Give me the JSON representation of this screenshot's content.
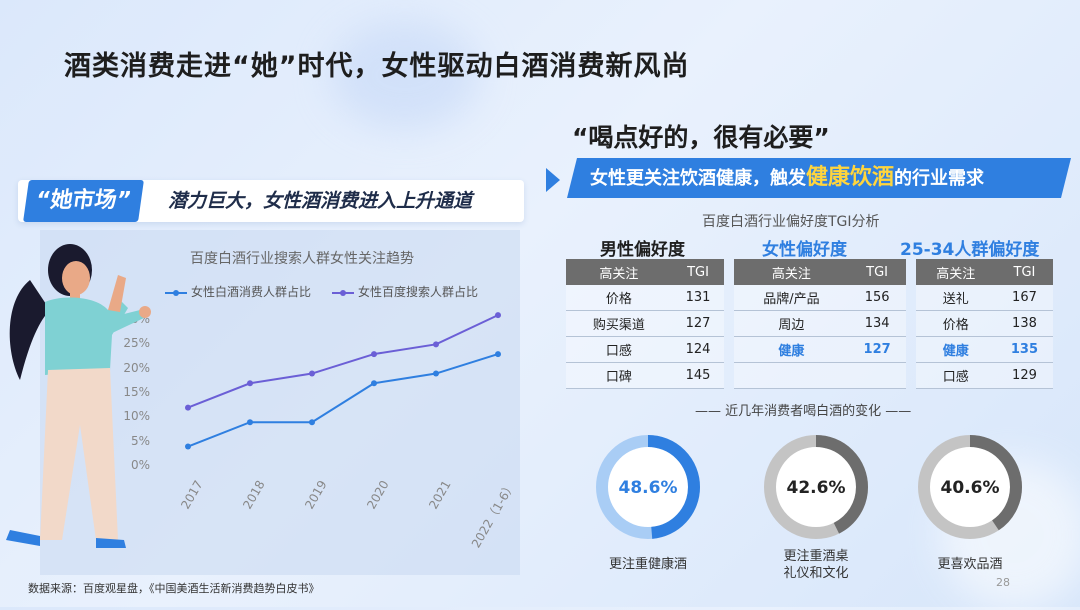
{
  "title": "酒类消费走进“她”时代，女性驱动白酒消费新风尚",
  "left_tag": {
    "highlight": "“她市场”",
    "text": "潜力巨大，女性酒消费进入上升通道"
  },
  "right_quote": "“喝点好的，很有必要”",
  "banner": {
    "prefix": "女性更关注饮酒健康，触发",
    "emphasis": "健康饮酒",
    "suffix": "的行业需求"
  },
  "tgi_title": "百度白酒行业偏好度TGI分析",
  "tgi_groups": [
    "男性偏好度",
    "女性偏好度",
    "25-34人群偏好度"
  ],
  "tgi_header": {
    "col1": "高关注",
    "col2": "TGI"
  },
  "tgi_rows": [
    [
      [
        "价格",
        "131"
      ],
      [
        "品牌/产品",
        "156"
      ],
      [
        "送礼",
        "167"
      ]
    ],
    [
      [
        "购买渠道",
        "127"
      ],
      [
        "周边",
        "134"
      ],
      [
        "价格",
        "138"
      ]
    ],
    [
      [
        "口感",
        "124"
      ],
      [
        "健康",
        "127"
      ],
      [
        "健康",
        "135"
      ]
    ],
    [
      [
        "口碑",
        "145"
      ],
      [
        "",
        ""
      ],
      [
        "口感",
        "129"
      ]
    ]
  ],
  "donut_section_title": "—— 近几年消费者喝白酒的变化 ——",
  "donuts": [
    {
      "value": 48.6,
      "label_text": "48.6%",
      "caption": "更注重健康酒",
      "color": "#2f7fe0",
      "track": "#a9cdf5"
    },
    {
      "value": 42.6,
      "label_text": "42.6%",
      "caption": "更注重酒桌\n礼仪和文化",
      "color": "#6d6d6d",
      "track": "#c4c4c4"
    },
    {
      "value": 40.6,
      "label_text": "40.6%",
      "caption": "更喜欢品酒",
      "color": "#6d6d6d",
      "track": "#c4c4c4"
    }
  ],
  "footer": "数据来源：百度观星盘，《中国美酒生活新消费趋势白皮书》",
  "page_number": "28",
  "chart_data": {
    "type": "line",
    "title": "百度白酒行业搜索人群女性关注趋势",
    "categories": [
      "2017",
      "2018",
      "2019",
      "2020",
      "2021",
      "2022（1-6）"
    ],
    "yticks": [
      "0%",
      "5%",
      "10%",
      "15%",
      "20%",
      "25%",
      "30%"
    ],
    "ylim": [
      0,
      30
    ],
    "series": [
      {
        "name": "女性白酒消费人群占比",
        "values": [
          4,
          9,
          9,
          17,
          19,
          23
        ],
        "color": "#2f7fe0"
      },
      {
        "name": "女性百度搜索人群占比",
        "values": [
          12,
          17,
          19,
          23,
          25,
          31
        ],
        "color": "#6b5fd6"
      }
    ],
    "legend": "top",
    "grid": false
  }
}
